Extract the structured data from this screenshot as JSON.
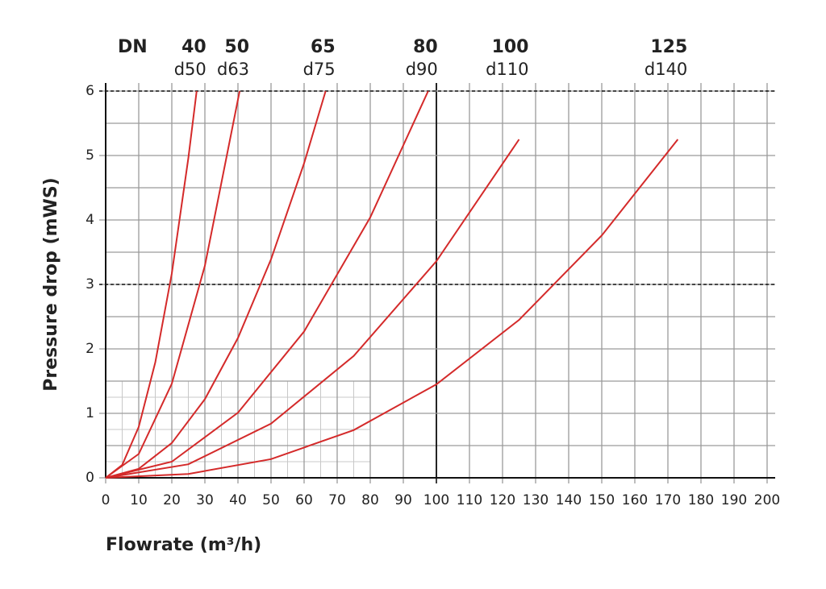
{
  "chart_data": {
    "type": "line",
    "xlabel": "Flowrate (m³/h)",
    "ylabel": "Pressure drop (mWS)",
    "series_header": "DN",
    "xlim": [
      0,
      200
    ],
    "ylim": [
      0,
      6
    ],
    "xticks": [
      0,
      10,
      20,
      30,
      40,
      50,
      60,
      70,
      80,
      90,
      100,
      110,
      120,
      130,
      140,
      150,
      160,
      170,
      180,
      190,
      200
    ],
    "yticks": [
      0,
      1,
      2,
      3,
      4,
      5,
      6
    ],
    "grid": true,
    "ygrid_minor": [
      0.5,
      1.5,
      2.5,
      3.5,
      4.5,
      5.5
    ],
    "dashed_y": [
      3,
      6
    ],
    "dark_x": [
      100
    ],
    "fine_grid": {
      "xlim": [
        0,
        80
      ],
      "ylim": [
        0,
        1.5
      ],
      "xstep": 5,
      "ystep": 0.25
    },
    "series": [
      {
        "name": "40",
        "pipe": "d50",
        "color": "#d42a2a",
        "x": [
          0,
          5,
          10,
          15,
          20,
          25,
          27.5
        ],
        "values": [
          0,
          0.2,
          0.79,
          1.79,
          3.17,
          4.96,
          6
        ]
      },
      {
        "name": "50",
        "pipe": "d63",
        "color": "#d42a2a",
        "x": [
          0,
          10,
          20,
          30,
          40.5
        ],
        "values": [
          0,
          0.37,
          1.46,
          3.29,
          6
        ]
      },
      {
        "name": "65",
        "pipe": "d75",
        "color": "#d42a2a",
        "x": [
          0,
          10,
          20,
          30,
          40,
          50,
          60,
          66.5
        ],
        "values": [
          0,
          0.14,
          0.54,
          1.22,
          2.17,
          3.39,
          4.88,
          6
        ]
      },
      {
        "name": "80",
        "pipe": "d90",
        "color": "#d42a2a",
        "x": [
          0,
          20,
          40,
          60,
          80,
          97.5
        ],
        "values": [
          0,
          0.25,
          1.01,
          2.27,
          4.04,
          6
        ]
      },
      {
        "name": "100",
        "pipe": "d110",
        "color": "#d42a2a",
        "x": [
          0,
          25,
          50,
          75,
          100,
          125
        ],
        "values": [
          0,
          0.21,
          0.84,
          1.89,
          3.36,
          5.25
        ]
      },
      {
        "name": "125",
        "pipe": "d140",
        "color": "#d42a2a",
        "x": [
          0,
          25,
          50,
          75,
          100,
          125,
          150,
          173
        ],
        "values": [
          0,
          0.06,
          0.29,
          0.74,
          1.45,
          2.45,
          3.76,
          5.25
        ]
      }
    ]
  }
}
